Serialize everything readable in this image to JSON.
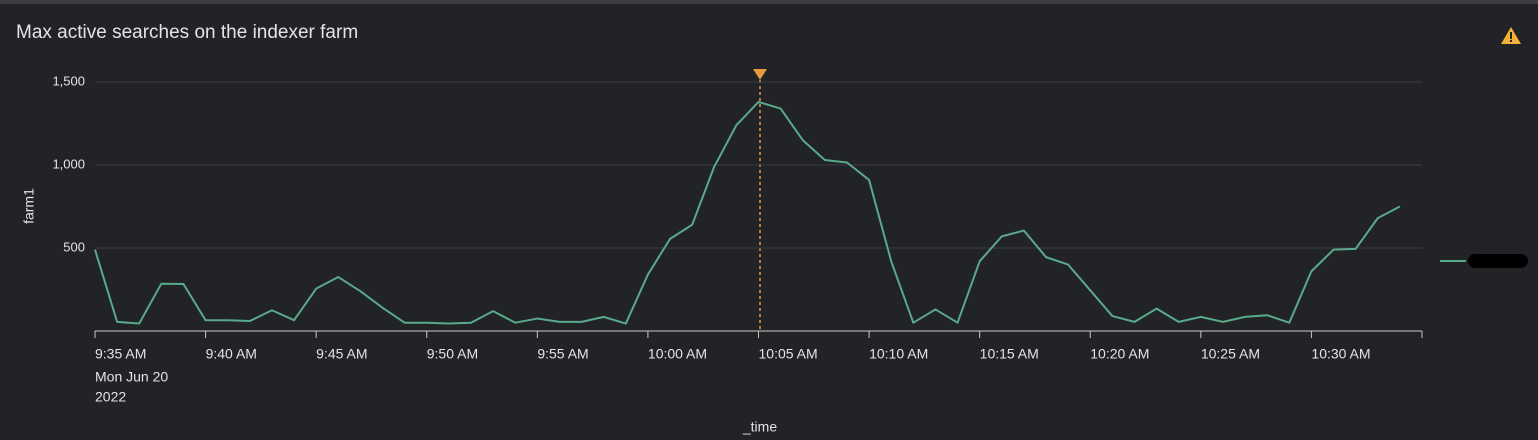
{
  "chart_data": {
    "type": "line",
    "title": "Max active searches on the indexer farm",
    "x_label": "_time",
    "y_label": "farm1",
    "date_label": [
      "Mon Jun 20",
      "2022"
    ],
    "categories": [
      "9:35 AM",
      null,
      null,
      null,
      null,
      "9:40 AM",
      null,
      null,
      null,
      null,
      "9:45 AM",
      null,
      null,
      null,
      null,
      "9:50 AM",
      null,
      null,
      null,
      null,
      "9:55 AM",
      null,
      null,
      null,
      null,
      "10:00 AM",
      null,
      null,
      null,
      null,
      "10:05 AM",
      null,
      null,
      null,
      null,
      "10:10 AM",
      null,
      null,
      null,
      null,
      "10:15 AM",
      null,
      null,
      null,
      null,
      "10:20 AM",
      null,
      null,
      null,
      null,
      "10:25 AM",
      null,
      null,
      null,
      null,
      "10:30 AM",
      null,
      null,
      null,
      null
    ],
    "values": [
      490,
      55,
      45,
      285,
      283,
      65,
      65,
      60,
      125,
      65,
      255,
      325,
      240,
      140,
      50,
      50,
      45,
      50,
      120,
      50,
      75,
      55,
      55,
      85,
      45,
      340,
      555,
      640,
      990,
      1240,
      1380,
      1340,
      1150,
      1030,
      1015,
      910,
      420,
      50,
      130,
      50,
      420,
      570,
      605,
      445,
      400,
      245,
      90,
      55,
      135,
      55,
      85,
      55,
      85,
      95,
      50,
      360,
      490,
      495,
      680,
      750
    ],
    "color": "#5aa98a",
    "ylim": [
      0,
      1500
    ],
    "yticks": [
      {
        "value": 500,
        "label": "500"
      },
      {
        "value": 1000,
        "label": "1,000"
      },
      {
        "value": 1500,
        "label": "1,500"
      }
    ],
    "grid": true
  }
}
